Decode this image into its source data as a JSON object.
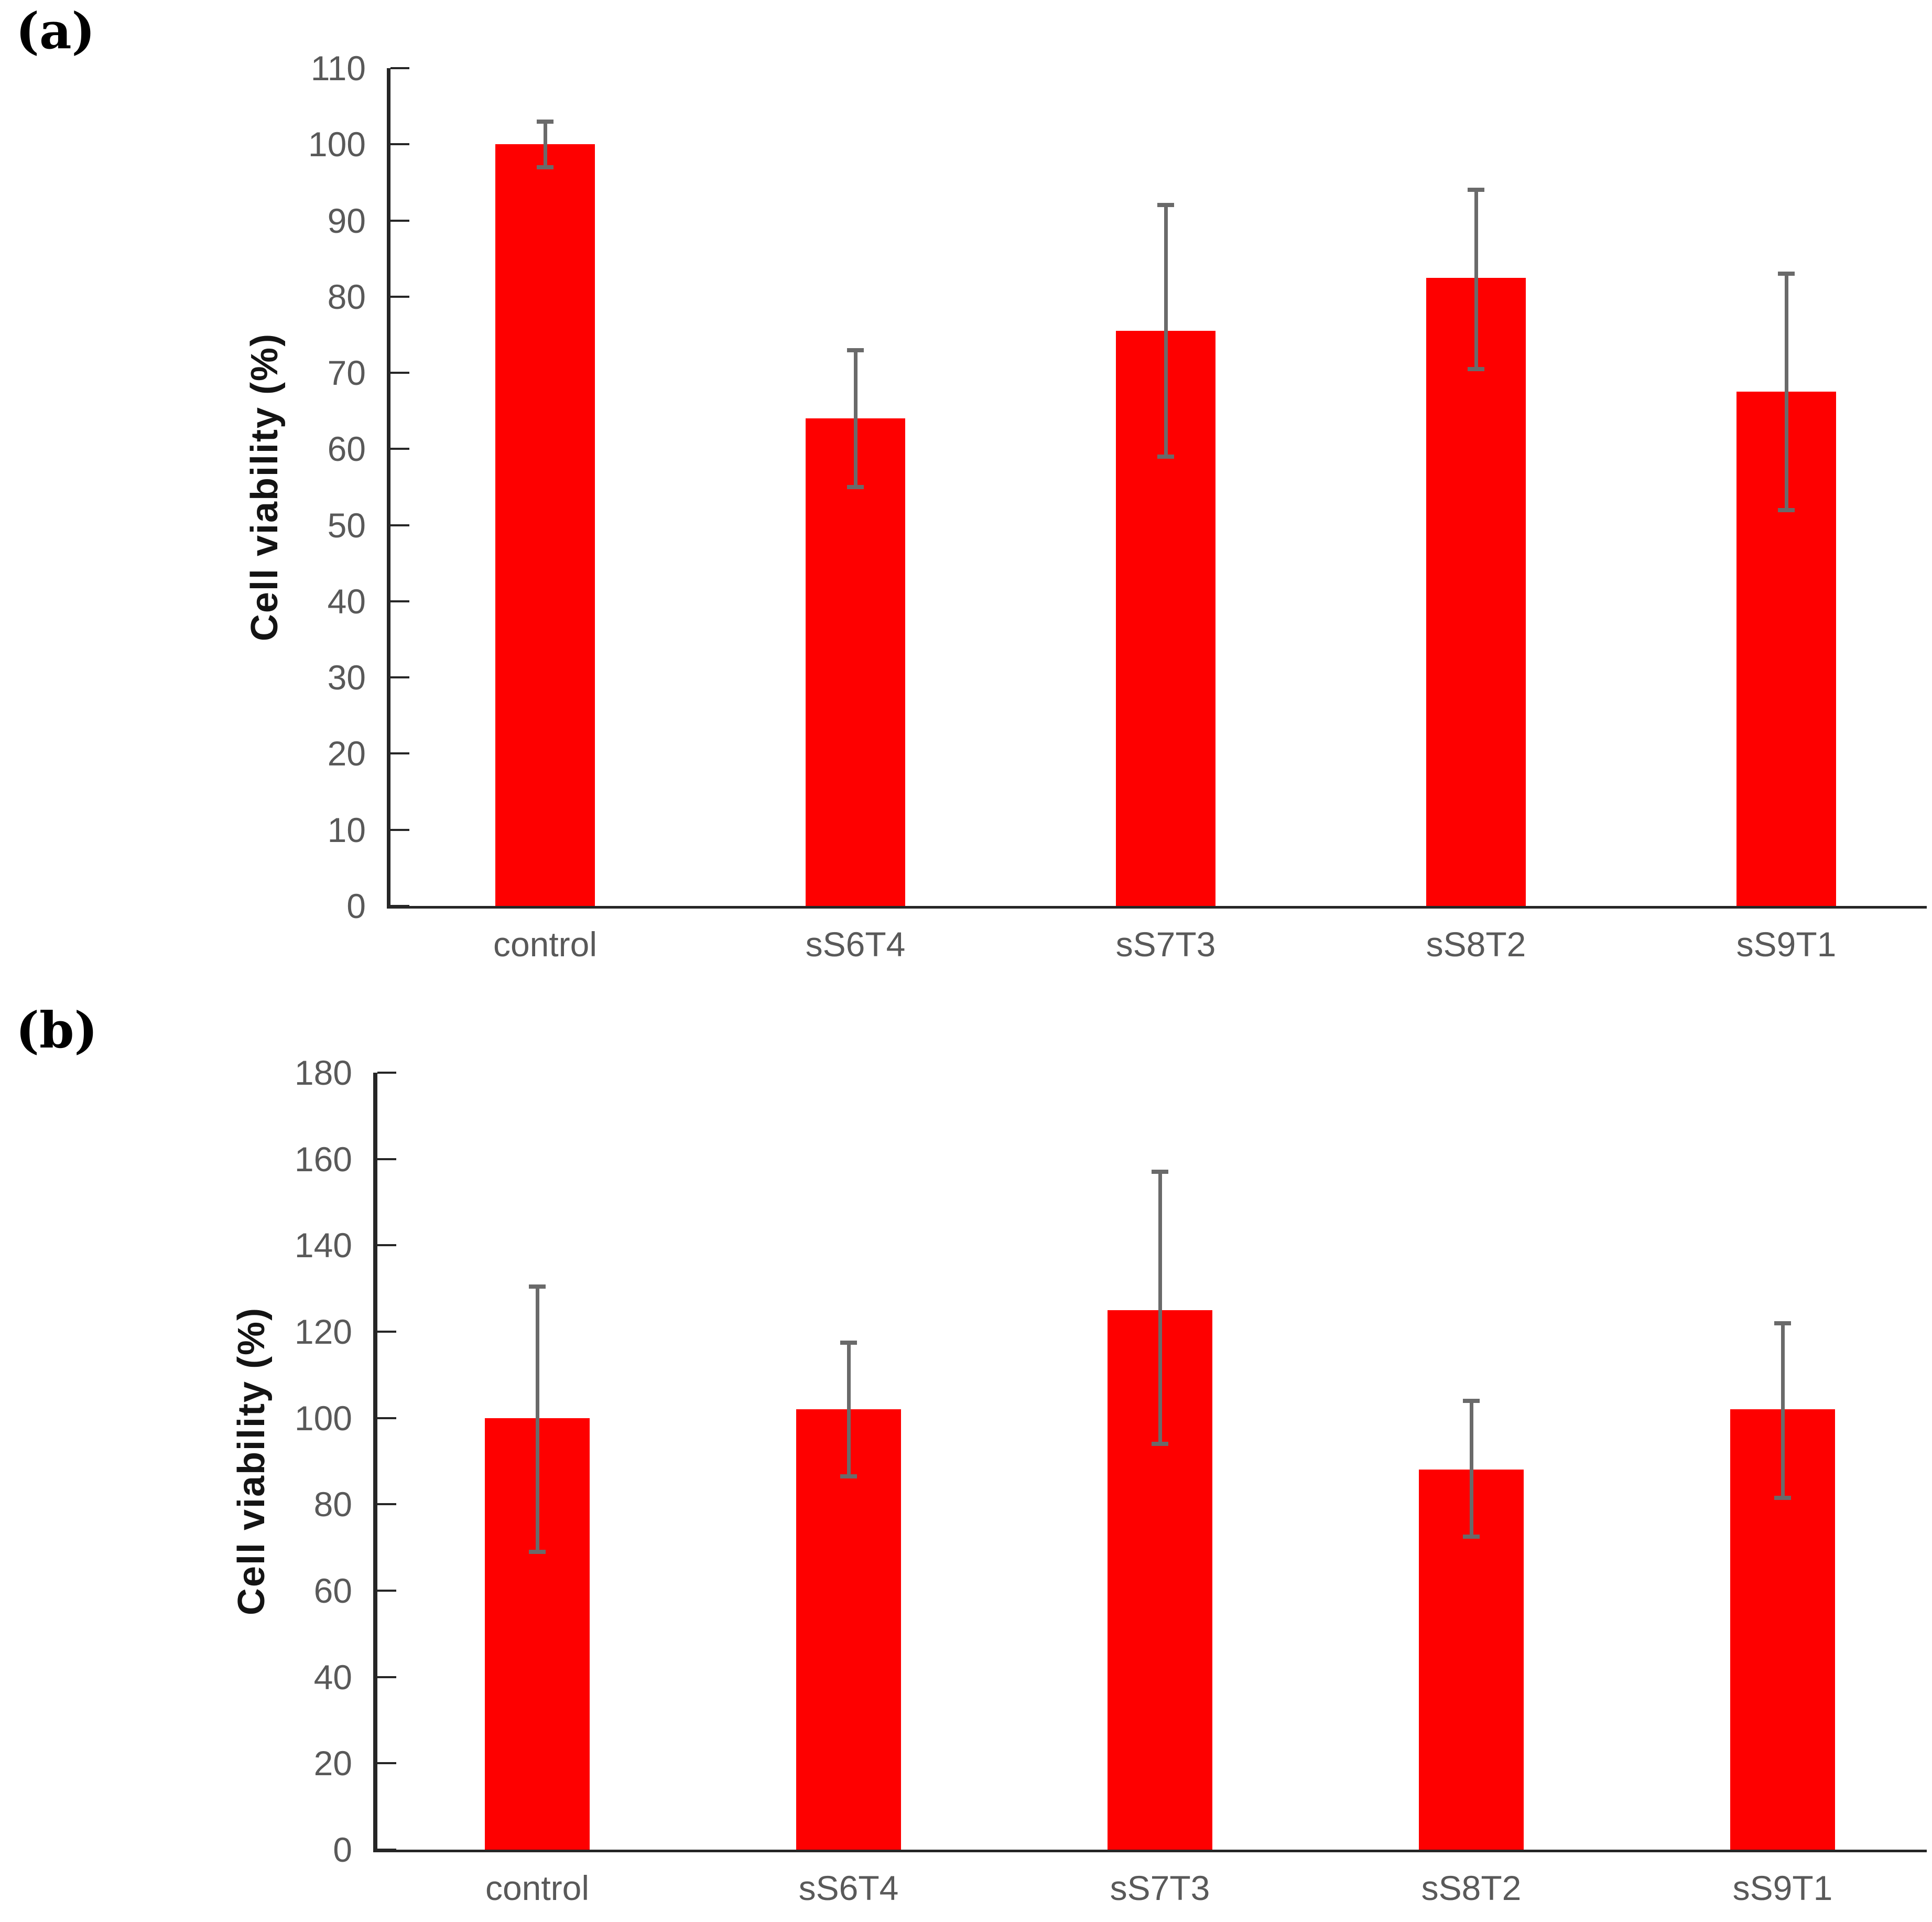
{
  "figure": {
    "background": "#ffffff",
    "description": "Two-panel bar chart of cell viability (%) for control and sericin/PVA samples"
  },
  "panels": [
    {
      "label": "(a)"
    },
    {
      "label": "(b)"
    }
  ],
  "colors": {
    "bar": "#fe0000",
    "error_bar": "#6a6a6a",
    "axis": "#262626",
    "tick_label": "#595959",
    "category_label": "#595959",
    "axis_title": "#141414"
  },
  "chart_data": [
    {
      "type": "bar",
      "panel": "(a)",
      "title": "",
      "xlabel": "",
      "ylabel": "Cell viability (%)",
      "categories": [
        "control",
        "sS6T4",
        "sS7T3",
        "sS8T2",
        "sS9T1"
      ],
      "values": [
        100,
        64,
        75.5,
        82.5,
        67.5
      ],
      "error_upper": [
        103,
        73,
        92,
        94,
        83
      ],
      "error_lower": [
        97,
        55,
        59,
        70.5,
        52
      ],
      "ylim": [
        0,
        110
      ],
      "ytick_step": 10,
      "grid": false,
      "legend": false,
      "bar_color": "#fe0000",
      "error_color": "#6a6a6a"
    },
    {
      "type": "bar",
      "panel": "(b)",
      "title": "",
      "xlabel": "",
      "ylabel": "Cell viability (%)",
      "categories": [
        "control",
        "sS6T4",
        "sS7T3",
        "sS8T2",
        "sS9T1"
      ],
      "values": [
        100,
        102,
        125,
        88,
        102
      ],
      "error_upper": [
        130.5,
        117.5,
        157,
        104,
        122
      ],
      "error_lower": [
        69,
        86.5,
        94,
        72.5,
        81.5
      ],
      "ylim": [
        0,
        180
      ],
      "ytick_step": 20,
      "grid": false,
      "legend": false,
      "bar_color": "#fe0000",
      "error_color": "#6a6a6a"
    }
  ]
}
